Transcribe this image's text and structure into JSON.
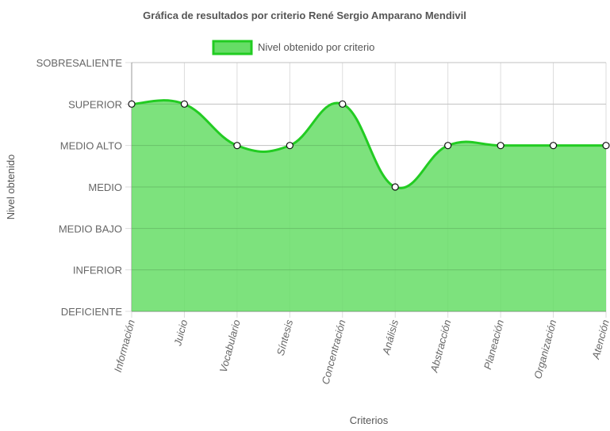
{
  "chart_data": {
    "type": "area",
    "title": "Gráfica de resultados por criterio René Sergio Amparano Mendivil",
    "xlabel": "Criterios",
    "ylabel": "Nivel obtenido",
    "y_levels": [
      "DEFICIENTE",
      "INFERIOR",
      "MEDIO BAJO",
      "MEDIO",
      "MEDIO ALTO",
      "SUPERIOR",
      "SOBRESALIENTE"
    ],
    "ylim": [
      0,
      6
    ],
    "categories": [
      "Información",
      "Juicio",
      "Vocabulario",
      "Síntesis",
      "Concentración",
      "Análisis",
      "Abstracción",
      "Planeación",
      "Organización",
      "Atención"
    ],
    "series": [
      {
        "name": "Nivel obtenido por criterio",
        "values": [
          5,
          5,
          4,
          4,
          5,
          3,
          4,
          4,
          4,
          4
        ],
        "fill_color": "#66dd66",
        "line_color": "#22cc22"
      }
    ],
    "legend_position": "top",
    "grid": true
  }
}
